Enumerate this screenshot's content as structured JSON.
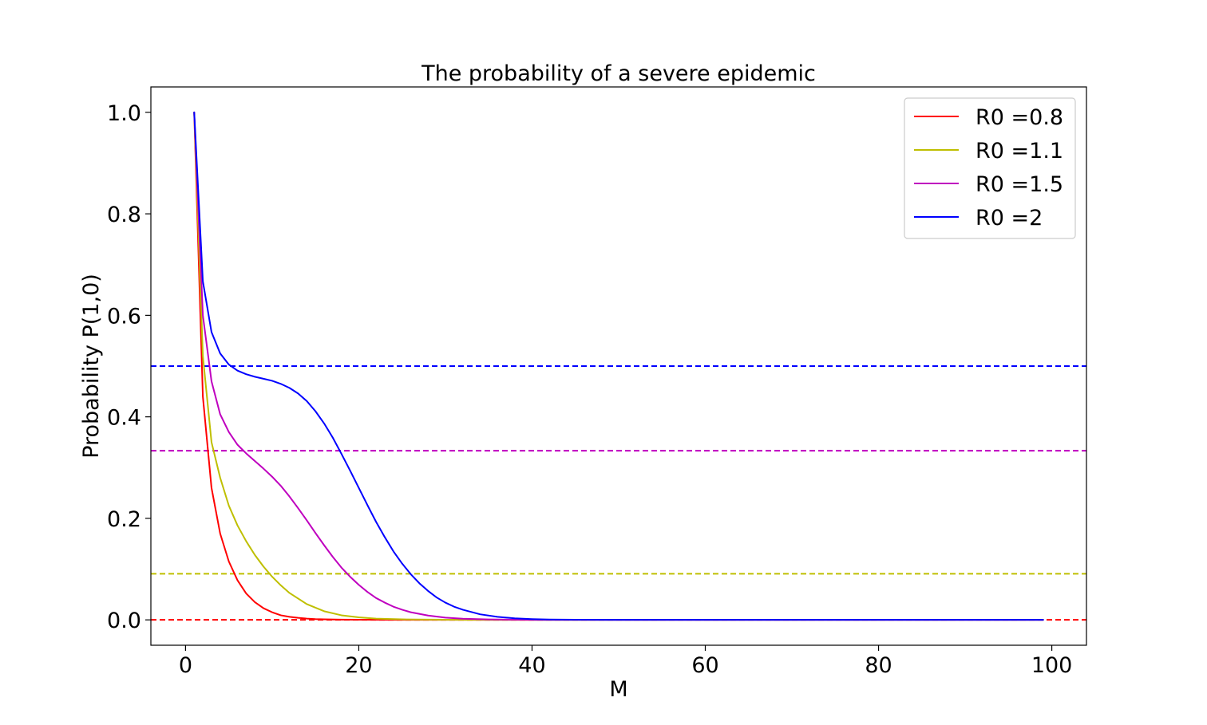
{
  "chart_data": {
    "type": "line",
    "title": "The probability of a severe epidemic",
    "xlabel": "M",
    "ylabel": "Probability P(1,0)",
    "xlim": [
      -4,
      104
    ],
    "ylim": [
      -0.05,
      1.05
    ],
    "xticks": [
      0,
      20,
      40,
      60,
      80,
      100
    ],
    "yticks": [
      0.0,
      0.2,
      0.4,
      0.6,
      0.8,
      1.0
    ],
    "xtick_labels": [
      "0",
      "20",
      "40",
      "60",
      "80",
      "100"
    ],
    "ytick_labels": [
      "0.0",
      "0.2",
      "0.4",
      "0.6",
      "0.8",
      "1.0"
    ],
    "grid": false,
    "legend_position": "top-right",
    "series": [
      {
        "name": "R0 =0.8",
        "color": "#ff0000",
        "x": [
          1,
          2,
          3,
          4,
          5,
          6,
          7,
          8,
          9,
          10,
          11,
          12,
          13,
          14,
          15,
          16,
          18,
          20,
          25,
          30,
          40,
          60,
          80,
          99
        ],
        "y": [
          1.0,
          0.44,
          0.26,
          0.17,
          0.115,
          0.078,
          0.052,
          0.035,
          0.023,
          0.015,
          0.009,
          0.006,
          0.004,
          0.0025,
          0.0015,
          0.001,
          0.0004,
          0.0002,
          0.0,
          0.0,
          0.0,
          0.0,
          0.0,
          0.0
        ]
      },
      {
        "name": "R0 =1.1",
        "color": "#bfbf00",
        "x": [
          1,
          2,
          3,
          4,
          5,
          6,
          7,
          8,
          9,
          10,
          11,
          12,
          14,
          16,
          18,
          20,
          22,
          25,
          30,
          35,
          40,
          60,
          80,
          99
        ],
        "y": [
          1.0,
          0.52,
          0.35,
          0.28,
          0.225,
          0.186,
          0.155,
          0.128,
          0.105,
          0.085,
          0.068,
          0.053,
          0.031,
          0.017,
          0.009,
          0.005,
          0.0025,
          0.001,
          0.0002,
          0.0,
          0.0,
          0.0,
          0.0,
          0.0
        ]
      },
      {
        "name": "R0 =1.5",
        "color": "#bf00bf",
        "x": [
          1,
          2,
          3,
          4,
          5,
          6,
          7,
          8,
          9,
          10,
          11,
          12,
          13,
          14,
          15,
          16,
          17,
          18,
          19,
          20,
          21,
          22,
          23,
          24,
          25,
          26,
          28,
          30,
          32,
          35,
          40,
          45,
          60,
          80,
          99
        ],
        "y": [
          1.0,
          0.6,
          0.47,
          0.405,
          0.37,
          0.345,
          0.328,
          0.313,
          0.298,
          0.282,
          0.264,
          0.243,
          0.22,
          0.196,
          0.171,
          0.147,
          0.124,
          0.103,
          0.085,
          0.069,
          0.055,
          0.043,
          0.034,
          0.026,
          0.02,
          0.015,
          0.0085,
          0.0045,
          0.0023,
          0.0008,
          0.0001,
          0.0,
          0.0,
          0.0,
          0.0
        ]
      },
      {
        "name": "R0 =2",
        "color": "#0000ff",
        "x": [
          1,
          2,
          3,
          4,
          5,
          6,
          7,
          8,
          9,
          10,
          11,
          12,
          13,
          14,
          15,
          16,
          17,
          18,
          19,
          20,
          21,
          22,
          23,
          24,
          25,
          26,
          27,
          28,
          29,
          30,
          31,
          32,
          34,
          36,
          38,
          40,
          42,
          45,
          50,
          60,
          80,
          99
        ],
        "y": [
          1.0,
          0.667,
          0.567,
          0.525,
          0.503,
          0.491,
          0.484,
          0.479,
          0.475,
          0.471,
          0.465,
          0.457,
          0.446,
          0.431,
          0.411,
          0.387,
          0.359,
          0.327,
          0.294,
          0.26,
          0.226,
          0.193,
          0.163,
          0.135,
          0.111,
          0.09,
          0.072,
          0.057,
          0.044,
          0.034,
          0.026,
          0.02,
          0.011,
          0.006,
          0.003,
          0.0015,
          0.0007,
          0.0002,
          0.0,
          0.0,
          0.0,
          0.0
        ]
      }
    ],
    "reference_lines": [
      {
        "y": 0.0,
        "color": "#ff0000",
        "style": "dashed"
      },
      {
        "y": 0.0909,
        "color": "#bfbf00",
        "style": "dashed"
      },
      {
        "y": 0.3333,
        "color": "#bf00bf",
        "style": "dashed"
      },
      {
        "y": 0.5,
        "color": "#0000ff",
        "style": "dashed"
      }
    ]
  }
}
